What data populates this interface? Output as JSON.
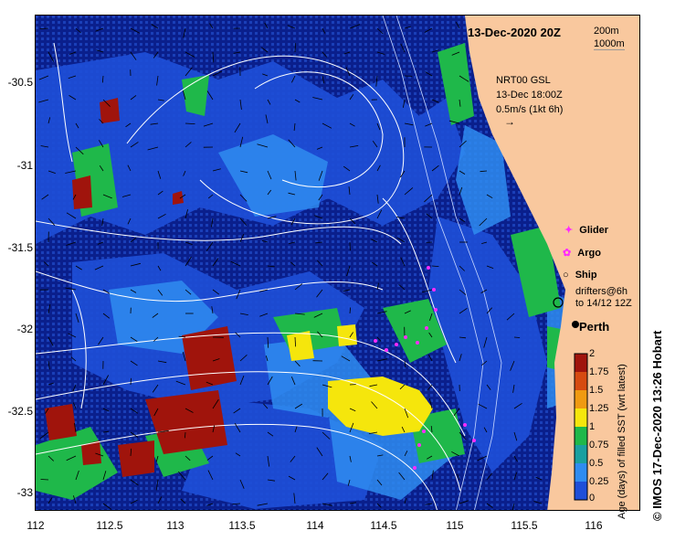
{
  "map": {
    "date_title": "13-Dec-2020 20Z",
    "depth_legend": [
      "200m",
      "1000m"
    ],
    "current_note": [
      "NRT00 GSL",
      "13-Dec 18:00Z",
      "0.5m/s (1kt 6h)"
    ],
    "place_label": "Perth",
    "legend": {
      "glider": "Glider",
      "argo": "Argo",
      "ship": "Ship",
      "drifters": [
        "drifters@6h",
        "to 14/12 12Z"
      ]
    },
    "colorbar": {
      "label": "Age (days) of filled SST (wrt latest)",
      "ticks": [
        "2",
        "1.75",
        "1.5",
        "1.25",
        "1",
        "0.75",
        "0.5",
        "0.25",
        "0"
      ]
    },
    "credit": "©  IMOS 17-Dec-2020 13:26 Hobart",
    "y_ticks": [
      "-30.5",
      "-31",
      "-31.5",
      "-32",
      "-32.5",
      "-33"
    ],
    "x_ticks": [
      "112",
      "112.5",
      "113",
      "113.5",
      "114",
      "114.5",
      "115",
      "115.5",
      "116"
    ],
    "colors": {
      "land": "#f9c89e",
      "ocean_dark": "#0a1f8c",
      "ocean_mid": "#1e4fd8",
      "ocean_light": "#2f8cf0",
      "green": "#1fb84a",
      "yellow": "#f5e60c",
      "red": "#a0140c",
      "magenta": "#ff2bff",
      "contour": "#ffffff"
    }
  }
}
